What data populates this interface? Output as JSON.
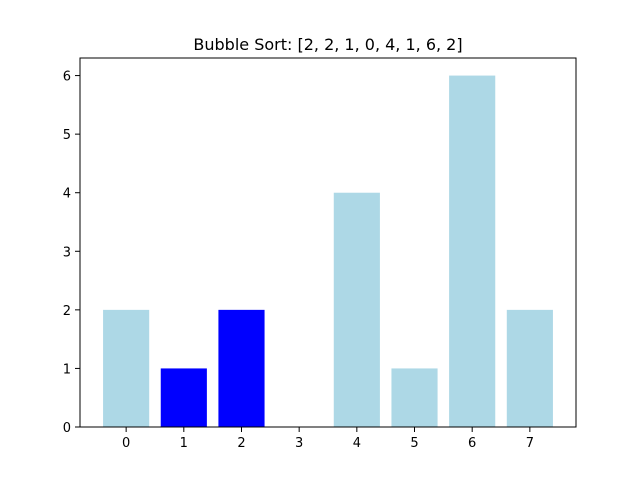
{
  "chart_data": {
    "type": "bar",
    "title": "Bubble Sort: [2, 2, 1, 0, 4, 1, 6, 2]",
    "xlabel": "",
    "ylabel": "",
    "categories": [
      "0",
      "1",
      "2",
      "3",
      "4",
      "5",
      "6",
      "7"
    ],
    "values": [
      2,
      1,
      2,
      0,
      4,
      1,
      6,
      2
    ],
    "highlighted_indices": [
      1,
      2
    ],
    "colors": {
      "default": "#add8e6",
      "highlight": "#0000ff",
      "axes": "#000000",
      "background": "#ffffff"
    },
    "ylim": [
      0,
      6.3
    ],
    "xlim": [
      -0.8,
      7.8
    ],
    "yticks": [
      0,
      1,
      2,
      3,
      4,
      5,
      6
    ],
    "grid": false,
    "legend": "none"
  }
}
